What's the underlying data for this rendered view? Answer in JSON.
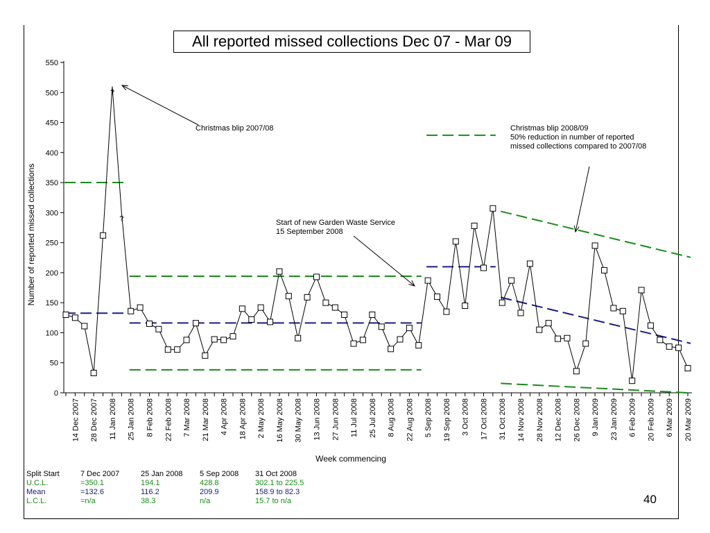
{
  "slide": {
    "page_number": "40"
  },
  "colors": {
    "ucl_lcl": "#1a8a1a",
    "mean": "#1a1a80",
    "series": "#000000",
    "annotation": "#000000"
  },
  "chart_data": {
    "type": "line",
    "title": "All reported missed collections Dec 07 - Mar 09",
    "xlabel": "Week commencing",
    "ylabel": "Number of reported missed collections",
    "ylim": [
      0,
      550
    ],
    "yticks": [
      0,
      50,
      100,
      150,
      200,
      250,
      300,
      350,
      400,
      450,
      500,
      550
    ],
    "xtick_labels": [
      "14 Dec 2007",
      "28 Dec 2007",
      "11 Jan 2008",
      "25 Jan 2008",
      "8 Feb 2008",
      "22 Feb 2008",
      "7 Mar 2008",
      "21 Mar 2008",
      "4 Apr 2008",
      "18 Apr 2008",
      "2 May 2008",
      "16 May 2008",
      "30 May 2008",
      "13 Jun 2008",
      "27 Jun 2008",
      "11 Jul 2008",
      "25 Jul 2008",
      "8 Aug 2008",
      "22 Aug 2008",
      "5 Sep 2008",
      "19 Sep 2008",
      "3 Oct 2008",
      "17 Oct 2008",
      "31 Oct 2008",
      "14 Nov 2008",
      "28 Nov 2008",
      "12 Dec 2008",
      "26 Dec 2008",
      "9 Jan 2009",
      "23 Jan 2009",
      "6 Feb 2009",
      "20 Feb 2009",
      "6 Mar 2009",
      "20 Mar 2009"
    ],
    "x_start_label": "7 Dec 2007",
    "weeks": [
      "7 Dec 2007",
      "14 Dec 2007",
      "21 Dec 2007",
      "28 Dec 2007",
      "4 Jan 2008",
      "11 Jan 2008",
      "18 Jan 2008",
      "25 Jan 2008",
      "1 Feb 2008",
      "8 Feb 2008",
      "15 Feb 2008",
      "22 Feb 2008",
      "29 Feb 2008",
      "7 Mar 2008",
      "14 Mar 2008",
      "21 Mar 2008",
      "28 Mar 2008",
      "4 Apr 2008",
      "11 Apr 2008",
      "18 Apr 2008",
      "25 Apr 2008",
      "2 May 2008",
      "9 May 2008",
      "16 May 2008",
      "23 May 2008",
      "30 May 2008",
      "6 Jun 2008",
      "13 Jun 2008",
      "20 Jun 2008",
      "27 Jun 2008",
      "4 Jul 2008",
      "11 Jul 2008",
      "18 Jul 2008",
      "25 Jul 2008",
      "1 Aug 2008",
      "8 Aug 2008",
      "15 Aug 2008",
      "22 Aug 2008",
      "29 Aug 2008",
      "5 Sep 2008",
      "12 Sep 2008",
      "19 Sep 2008",
      "26 Sep 2008",
      "3 Oct 2008",
      "10 Oct 2008",
      "17 Oct 2008",
      "24 Oct 2008",
      "31 Oct 2008",
      "7 Nov 2008",
      "14 Nov 2008",
      "21 Nov 2008",
      "28 Nov 2008",
      "5 Dec 2008",
      "12 Dec 2008",
      "19 Dec 2008",
      "26 Dec 2008",
      "2 Jan 2009",
      "9 Jan 2009",
      "16 Jan 2009",
      "23 Jan 2009",
      "30 Jan 2009",
      "6 Feb 2009",
      "13 Feb 2009",
      "20 Feb 2009",
      "27 Feb 2009",
      "6 Mar 2009",
      "13 Mar 2009",
      "20 Mar 2009"
    ],
    "series": [
      {
        "values": [
          130,
          125,
          111,
          33,
          262,
          510,
          300,
          136,
          142,
          115,
          106,
          72,
          72,
          88,
          116,
          62,
          89,
          88,
          94,
          140,
          122,
          142,
          118,
          202,
          161,
          91,
          159,
          193,
          150,
          142,
          130,
          82,
          88,
          130,
          110,
          73,
          89,
          108,
          79,
          187,
          160,
          135,
          252,
          145,
          278,
          208,
          307,
          150,
          187,
          133,
          215,
          105,
          116,
          90,
          91,
          36,
          82,
          245,
          204,
          141,
          136,
          20,
          171,
          112,
          88,
          77,
          75,
          41
        ],
        "unmarked_points": [
          "11 Jan 2008",
          "18 Jan 2008"
        ],
        "point_labels": [
          {
            "x": "11 Jan 2008",
            "text": "?"
          },
          {
            "x": "18 Jan 2008",
            "text": "?"
          }
        ]
      }
    ],
    "control_limits": [
      {
        "segment": "7 Dec 2007",
        "from": "7 Dec 2007",
        "to": "18 Jan 2008",
        "ucl": [
          350.1,
          350.1
        ],
        "mean": [
          132.6,
          132.6
        ],
        "lcl": null
      },
      {
        "segment": "25 Jan 2008",
        "from": "25 Jan 2008",
        "to": "29 Aug 2008",
        "ucl": [
          194.1,
          194.1
        ],
        "mean": [
          116.2,
          116.2
        ],
        "lcl": [
          38.3,
          38.3
        ]
      },
      {
        "segment": "5 Sep 2008",
        "from": "5 Sep 2008",
        "to": "24 Oct 2008",
        "ucl": [
          428.8,
          428.8
        ],
        "mean": [
          209.9,
          209.9
        ],
        "lcl": null
      },
      {
        "segment": "31 Oct 2008",
        "from": "31 Oct 2008",
        "to": "20 Mar 2009",
        "ucl": [
          302.1,
          225.5
        ],
        "mean": [
          158.9,
          82.3
        ],
        "lcl": [
          15.7,
          0
        ]
      }
    ],
    "annotations": [
      {
        "id": "christmas-0708",
        "lines": [
          "Christmas blip 2007/08"
        ],
        "points_to": "11 Jan 2008"
      },
      {
        "id": "garden-waste",
        "lines": [
          "Start of new Garden Waste Service",
          "15 September 2008"
        ],
        "points_to": "5 Sep 2008"
      },
      {
        "id": "christmas-0809",
        "lines": [
          "Christmas blip 2008/09",
          "50% reduction in number of reported",
          "missed collections compared to 2007/08"
        ],
        "points_to": "9 Jan 2009"
      }
    ]
  },
  "stats_table": {
    "rows": [
      {
        "label": "Split Start",
        "values": [
          "7 Dec 2007",
          "25 Jan 2008",
          "5 Sep 2008",
          "31 Oct 2008"
        ],
        "color": "#000000"
      },
      {
        "label": "U.C.L.",
        "values": [
          "=350.1",
          "194.1",
          "428.8",
          "302.1 to 225.5"
        ],
        "color": "#1a8a1a"
      },
      {
        "label": "Mean",
        "values": [
          "=132.6",
          "116.2",
          "209.9",
          "158.9 to 82.3"
        ],
        "color": "#1a1a80"
      },
      {
        "label": "L.C.L.",
        "values": [
          "=n/a",
          "38.3",
          "n/a",
          "15.7 to n/a"
        ],
        "color": "#1a8a1a"
      }
    ]
  }
}
